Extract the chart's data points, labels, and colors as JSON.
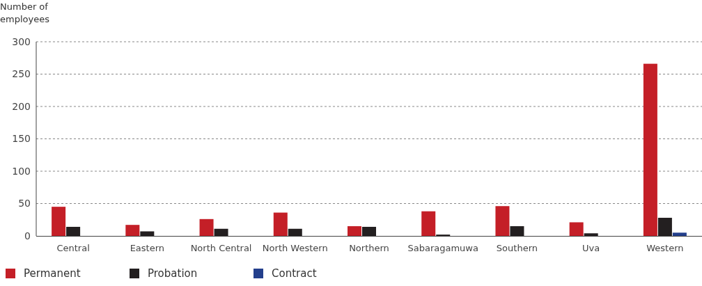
{
  "chart_data": {
    "type": "bar",
    "ylabel": "Number of employees",
    "categories": [
      "Central",
      "Eastern",
      "North Central",
      "North Western",
      "Northern",
      "Sabaragamuwa",
      "Southern",
      "Uva",
      "Western"
    ],
    "series": [
      {
        "name": "Permanent",
        "color": "#c41f27",
        "values": [
          45,
          17,
          26,
          36,
          15,
          38,
          46,
          21,
          266
        ]
      },
      {
        "name": "Probation",
        "color": "#231f20",
        "values": [
          14,
          7,
          11,
          11,
          14,
          2,
          15,
          4,
          28
        ]
      },
      {
        "name": "Contract",
        "color": "#233f8c",
        "values": [
          0,
          0,
          0,
          0,
          0,
          0,
          0,
          0,
          5
        ]
      }
    ],
    "ylim": [
      0,
      300
    ],
    "yticks": [
      0,
      50,
      100,
      150,
      200,
      250,
      300
    ],
    "grid": "y",
    "legend": "bottom left"
  }
}
